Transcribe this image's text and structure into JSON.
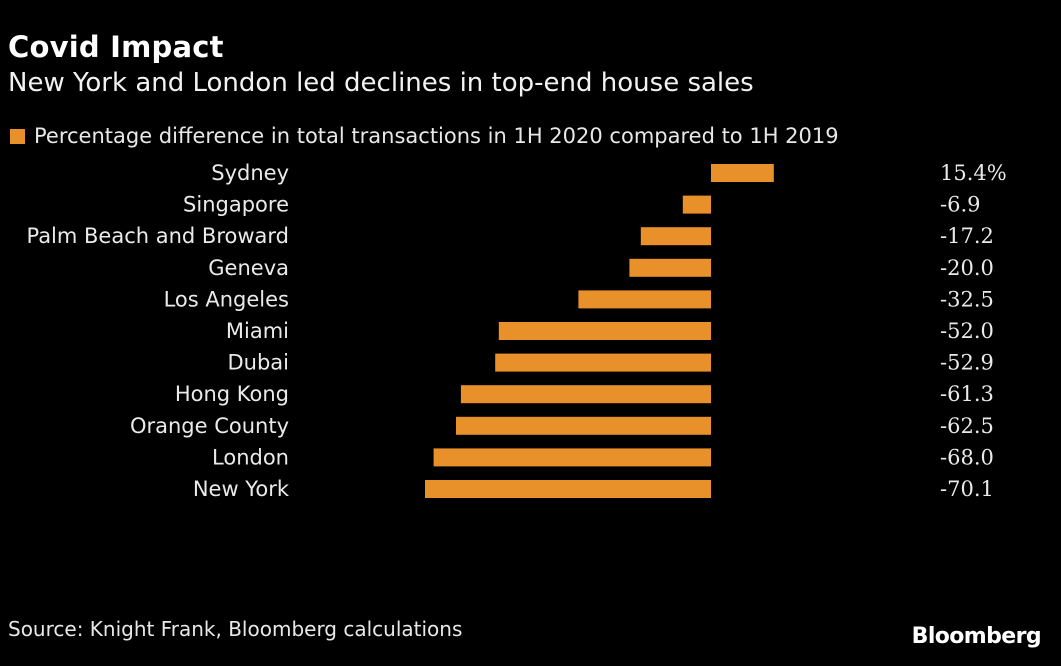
{
  "header": {
    "title": "Covid Impact",
    "subtitle": "New York and London led declines in top-end house sales"
  },
  "legend": {
    "label": "Percentage difference in total transactions in 1H 2020 compared to 1H 2019"
  },
  "footer": {
    "source": "Source: Knight Frank, Bloomberg calculations",
    "brand": "Bloomberg"
  },
  "colors": {
    "background": "#000000",
    "bar": "#e8902a",
    "text": "#ffffff"
  },
  "chart_data": {
    "type": "bar",
    "orientation": "horizontal",
    "title": "Covid Impact",
    "subtitle": "New York and London led declines in top-end house sales",
    "categories": [
      "Sydney",
      "Singapore",
      "Palm Beach and Broward",
      "Geneva",
      "Los Angeles",
      "Miami",
      "Dubai",
      "Hong Kong",
      "Orange County",
      "London",
      "New York"
    ],
    "values": [
      15.4,
      -6.9,
      -17.2,
      -20.0,
      -32.5,
      -52.0,
      -52.9,
      -61.3,
      -62.5,
      -68.0,
      -70.1
    ],
    "value_labels": [
      "15.4%",
      "-6.9",
      "-17.2",
      "-20.0",
      "-32.5",
      "-52.0",
      "-52.9",
      "-61.3",
      "-62.5",
      "-68.0",
      "-70.1"
    ],
    "series_name": "Percentage difference in total transactions in 1H 2020 compared to 1H 2019",
    "xlim": [
      -70.1,
      15.4
    ],
    "grid": false,
    "legend_position": "top-left"
  }
}
